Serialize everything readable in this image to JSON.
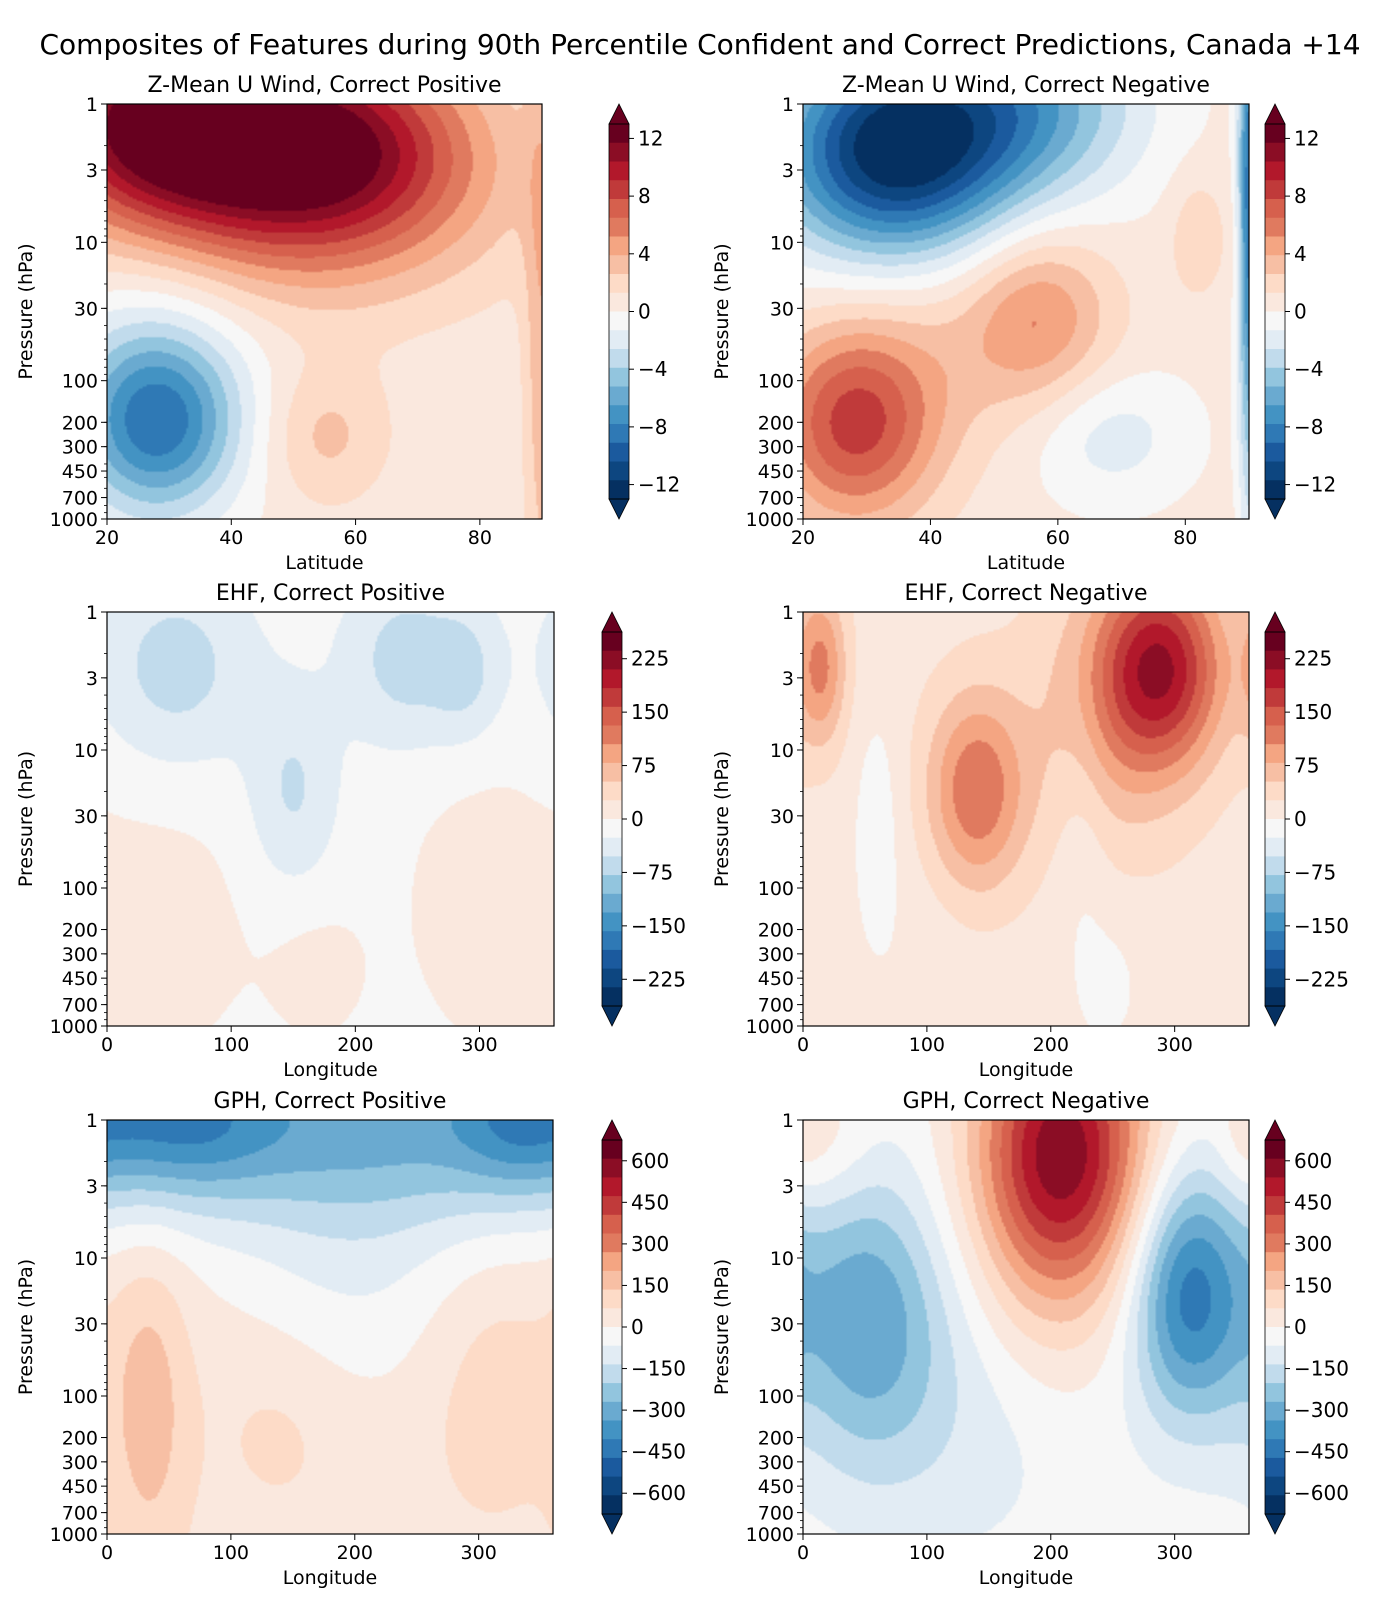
{
  "figure": {
    "title": "Composites of Features during 90th Percentile Confident and Correct Predictions, Canada +14"
  },
  "colormap": {
    "name": "RdBu_r",
    "stops": [
      "#053061",
      "#0d4680",
      "#1b5a9e",
      "#2f79b5",
      "#4393c3",
      "#6aaad0",
      "#92c5de",
      "#c1dbec",
      "#e2ecf4",
      "#f7f7f7",
      "#fae8de",
      "#fddbc7",
      "#f7bfa4",
      "#f4a582",
      "#e07a5f",
      "#d6604d",
      "#c03a3a",
      "#b2182b",
      "#8b0d25",
      "#67001f"
    ]
  },
  "chart_data": [
    {
      "type": "heatmap",
      "id": "zmean-positive",
      "title": "Z-Mean U Wind, Correct Positive",
      "xlabel": "Latitude",
      "ylabel": "Pressure (hPa)",
      "xlim": [
        20,
        90
      ],
      "xticks": [
        "20",
        "40",
        "60",
        "80"
      ],
      "yscale": "log-reversed",
      "ylim": [
        1000,
        1
      ],
      "yticks": [
        "1",
        "3",
        "10",
        "30",
        "100",
        "200",
        "300",
        "450",
        "700",
        "1000"
      ],
      "colorbar": {
        "range": [
          -13,
          13
        ],
        "ticks": [
          "12",
          "8",
          "4",
          "0",
          "−4",
          "−8",
          "−12"
        ],
        "extend": "both"
      },
      "background": 0.5,
      "features": [
        {
          "x": 28,
          "p": 1.3,
          "sx": 14,
          "sp": 0.5,
          "amp": 11
        },
        {
          "x": 55,
          "p": 1.8,
          "sx": 16,
          "sp": 0.5,
          "amp": 9
        },
        {
          "x": 50,
          "p": 5,
          "sx": 22,
          "sp": 0.55,
          "amp": 5
        },
        {
          "x": 28,
          "p": 210,
          "sx": 9,
          "sp": 0.45,
          "amp": -7.5
        },
        {
          "x": 28,
          "p": 80,
          "sx": 12,
          "sp": 0.7,
          "amp": -2.5
        },
        {
          "x": 55,
          "p": 250,
          "sx": 7,
          "sp": 0.35,
          "amp": 2.5
        },
        {
          "x": 90,
          "p": 60,
          "sx": 2,
          "sp": 1.5,
          "amp": 3
        }
      ]
    },
    {
      "type": "heatmap",
      "id": "zmean-negative",
      "title": "Z-Mean U Wind, Correct Negative",
      "xlabel": "Latitude",
      "ylabel": "Pressure (hPa)",
      "xlim": [
        20,
        90
      ],
      "xticks": [
        "20",
        "40",
        "60",
        "80"
      ],
      "yscale": "log-reversed",
      "ylim": [
        1000,
        1
      ],
      "yticks": [
        "1",
        "3",
        "10",
        "30",
        "100",
        "200",
        "300",
        "450",
        "700",
        "1000"
      ],
      "colorbar": {
        "range": [
          -13,
          13
        ],
        "ticks": [
          "12",
          "8",
          "4",
          "0",
          "−4",
          "−8",
          "−12"
        ],
        "extend": "both"
      },
      "background": 0.5,
      "features": [
        {
          "x": 34,
          "p": 2.2,
          "sx": 13,
          "sp": 0.55,
          "amp": -13
        },
        {
          "x": 55,
          "p": 1,
          "sx": 13,
          "sp": 0.5,
          "amp": -6
        },
        {
          "x": 57,
          "p": 35,
          "sx": 8,
          "sp": 0.45,
          "amp": 4.5
        },
        {
          "x": 28,
          "p": 210,
          "sx": 9,
          "sp": 0.5,
          "amp": 7.5
        },
        {
          "x": 40,
          "p": 60,
          "sx": 12,
          "sp": 0.6,
          "amp": 1.5
        },
        {
          "x": 68,
          "p": 250,
          "sx": 9,
          "sp": 0.35,
          "amp": -2.5
        },
        {
          "x": 82,
          "p": 9,
          "sx": 3,
          "sp": 0.3,
          "amp": 2
        },
        {
          "x": 90,
          "p": 5,
          "sx": 1.2,
          "sp": 1.5,
          "amp": -9
        }
      ]
    },
    {
      "type": "heatmap",
      "id": "ehf-positive",
      "title": "EHF, Correct Positive",
      "xlabel": "Longitude",
      "ylabel": "Pressure (hPa)",
      "xlim": [
        0,
        360
      ],
      "xticks": [
        "0",
        "100",
        "200",
        "300"
      ],
      "yscale": "log-reversed",
      "ylim": [
        1000,
        1
      ],
      "yticks": [
        "1",
        "3",
        "10",
        "30",
        "100",
        "200",
        "300",
        "450",
        "700",
        "1000"
      ],
      "colorbar": {
        "range": [
          -262.5,
          262.5
        ],
        "ticks": [
          "225",
          "150",
          "75",
          "0",
          "−75",
          "−150",
          "−225"
        ],
        "extend": "both"
      },
      "background": -10,
      "features": [
        {
          "x": 55,
          "p": 2.5,
          "sx": 45,
          "sp": 0.5,
          "amp": -55
        },
        {
          "x": 240,
          "p": 2.2,
          "sx": 35,
          "sp": 0.45,
          "amp": -55
        },
        {
          "x": 290,
          "p": 2.8,
          "sx": 20,
          "sp": 0.35,
          "amp": -40
        },
        {
          "x": 150,
          "p": 20,
          "sx": 25,
          "sp": 0.5,
          "amp": -45
        },
        {
          "x": 45,
          "p": 200,
          "sx": 50,
          "sp": 0.7,
          "amp": 22
        },
        {
          "x": 300,
          "p": 120,
          "sx": 45,
          "sp": 0.8,
          "amp": 20
        },
        {
          "x": 170,
          "p": 400,
          "sx": 30,
          "sp": 0.4,
          "amp": 18
        }
      ]
    },
    {
      "type": "heatmap",
      "id": "ehf-negative",
      "title": "EHF, Correct Negative",
      "xlabel": "Longitude",
      "ylabel": "Pressure (hPa)",
      "xlim": [
        0,
        360
      ],
      "xticks": [
        "0",
        "100",
        "200",
        "300"
      ],
      "yscale": "log-reversed",
      "ylim": [
        1000,
        1
      ],
      "yticks": [
        "1",
        "3",
        "10",
        "30",
        "100",
        "200",
        "300",
        "450",
        "700",
        "1000"
      ],
      "colorbar": {
        "range": [
          -262.5,
          262.5
        ],
        "ticks": [
          "225",
          "150",
          "75",
          "0",
          "−75",
          "−150",
          "−225"
        ],
        "extend": "both"
      },
      "background": 15,
      "features": [
        {
          "x": 290,
          "p": 2.5,
          "sx": 35,
          "sp": 0.5,
          "amp": 170
        },
        {
          "x": 250,
          "p": 5,
          "sx": 45,
          "sp": 0.7,
          "amp": 60
        },
        {
          "x": 140,
          "p": 20,
          "sx": 28,
          "sp": 0.5,
          "amp": 115
        },
        {
          "x": 15,
          "p": 2.5,
          "sx": 14,
          "sp": 0.4,
          "amp": 90
        },
        {
          "x": 60,
          "p": 30,
          "sx": 14,
          "sp": 0.6,
          "amp": -25
        },
        {
          "x": 225,
          "p": 40,
          "sx": 15,
          "sp": 0.9,
          "amp": -20
        },
        {
          "x": 80,
          "p": 300,
          "sx": 45,
          "sp": 0.8,
          "amp": -10
        },
        {
          "x": 250,
          "p": 500,
          "sx": 20,
          "sp": 0.4,
          "amp": -20
        }
      ]
    },
    {
      "type": "heatmap",
      "id": "gph-positive",
      "title": "GPH, Correct Positive",
      "xlabel": "Longitude",
      "ylabel": "Pressure (hPa)",
      "xlim": [
        0,
        360
      ],
      "xticks": [
        "0",
        "100",
        "200",
        "300"
      ],
      "yscale": "log-reversed",
      "ylim": [
        1000,
        1
      ],
      "yticks": [
        "1",
        "3",
        "10",
        "30",
        "100",
        "200",
        "300",
        "450",
        "700",
        "1000"
      ],
      "colorbar": {
        "range": [
          -675,
          675
        ],
        "ticks": [
          "600",
          "450",
          "300",
          "150",
          "0",
          "−150",
          "−300",
          "−450",
          "−600"
        ],
        "extend": "both"
      },
      "background": 40,
      "features": [
        {
          "x": 180,
          "p": 1,
          "sx": 400,
          "sp": 0.55,
          "amp": -330
        },
        {
          "x": 60,
          "p": 1,
          "sx": 50,
          "sp": 0.35,
          "amp": -160
        },
        {
          "x": 330,
          "p": 1,
          "sx": 35,
          "sp": 0.35,
          "amp": -140
        },
        {
          "x": 200,
          "p": 15,
          "sx": 70,
          "sp": 0.65,
          "amp": -90
        },
        {
          "x": 35,
          "p": 120,
          "sx": 22,
          "sp": 0.8,
          "amp": 130
        },
        {
          "x": 310,
          "p": 80,
          "sx": 40,
          "sp": 0.7,
          "amp": 70
        },
        {
          "x": 140,
          "p": 150,
          "sx": 40,
          "sp": 0.5,
          "amp": 50
        }
      ]
    },
    {
      "type": "heatmap",
      "id": "gph-negative",
      "title": "GPH, Correct Negative",
      "xlabel": "Longitude",
      "ylabel": "Pressure (hPa)",
      "xlim": [
        0,
        360
      ],
      "xticks": [
        "0",
        "100",
        "200",
        "300"
      ],
      "yscale": "log-reversed",
      "ylim": [
        1000,
        1
      ],
      "yticks": [
        "1",
        "3",
        "10",
        "30",
        "100",
        "200",
        "300",
        "450",
        "700",
        "1000"
      ],
      "colorbar": {
        "range": [
          -675,
          675
        ],
        "ticks": [
          "600",
          "450",
          "300",
          "150",
          "0",
          "−150",
          "−300",
          "−450",
          "−600"
        ],
        "extend": "both"
      },
      "background": -20,
      "features": [
        {
          "x": 210,
          "p": 1.5,
          "sx": 48,
          "sp": 0.7,
          "amp": 540
        },
        {
          "x": 200,
          "p": 8,
          "sx": 45,
          "sp": 0.8,
          "amp": 120
        },
        {
          "x": 310,
          "p": 18,
          "sx": 32,
          "sp": 0.65,
          "amp": -400
        },
        {
          "x": 50,
          "p": 25,
          "sx": 45,
          "sp": 0.75,
          "amp": -280
        },
        {
          "x": 130,
          "p": 150,
          "sx": 80,
          "sp": 0.8,
          "amp": -80
        },
        {
          "x": 20,
          "p": 1.5,
          "sx": 25,
          "sp": 0.35,
          "amp": 80
        },
        {
          "x": 355,
          "p": 1.5,
          "sx": 15,
          "sp": 0.3,
          "amp": 60
        }
      ]
    }
  ]
}
